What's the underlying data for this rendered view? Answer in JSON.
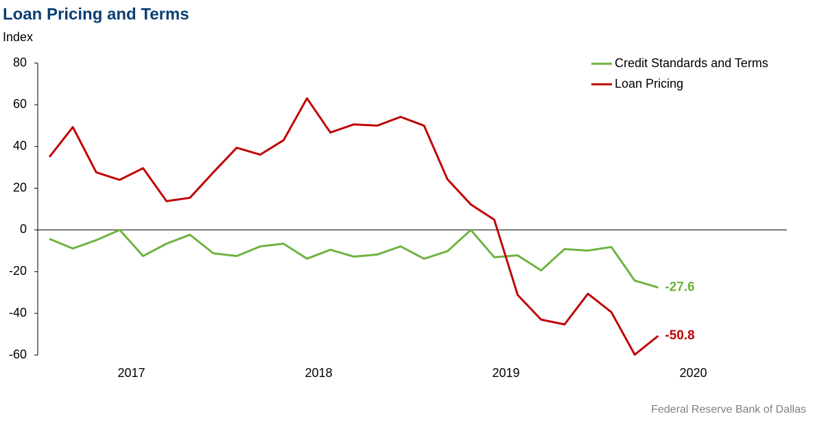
{
  "chart_data": {
    "type": "line",
    "title": "Loan Pricing and Terms",
    "y_label": "Index",
    "source": "Federal Reserve Bank of Dallas",
    "x": [
      2017.0625,
      2017.1875,
      2017.3125,
      2017.4375,
      2017.5625,
      2017.6875,
      2017.8125,
      2017.9375,
      2018.0625,
      2018.1875,
      2018.3125,
      2018.4375,
      2018.5625,
      2018.6875,
      2018.8125,
      2018.9375,
      2019.0625,
      2019.1875,
      2019.3125,
      2019.4375,
      2019.5625,
      2019.6875,
      2019.8125,
      2019.9375,
      2020.0625,
      2020.1875,
      2020.3125
    ],
    "xlim": [
      2017,
      2021
    ],
    "xticks": [
      {
        "value": 2017.5,
        "label": "2017"
      },
      {
        "value": 2018.5,
        "label": "2018"
      },
      {
        "value": 2019.5,
        "label": "2019"
      },
      {
        "value": 2020.5,
        "label": "2020"
      }
    ],
    "ylim": [
      -60,
      80
    ],
    "yticks": [
      -60,
      -40,
      -20,
      0,
      20,
      40,
      60,
      80
    ],
    "grid": false,
    "legend": "top-right",
    "label_last": true,
    "series": [
      {
        "name": "Credit Standards and Terms",
        "color": "#6db33f",
        "values": [
          -4.3,
          -8.9,
          -4.9,
          0,
          -12.5,
          -6.6,
          -2.3,
          -11.2,
          -12.5,
          -7.9,
          -6.6,
          -13.8,
          -9.5,
          -12.8,
          -11.8,
          -7.9,
          -13.8,
          -10.2,
          0,
          -13.1,
          -12.2,
          -19.4,
          -9.2,
          -9.9,
          -8.2,
          -24.3,
          -27.6
        ]
      },
      {
        "name": "Loan Pricing",
        "color": "#c00000",
        "values": [
          35,
          49.3,
          27.6,
          24,
          29.6,
          13.8,
          15.4,
          27.6,
          39.4,
          36.1,
          43,
          63.1,
          46.7,
          50.6,
          50,
          54.2,
          50,
          24.3,
          12.2,
          4.9,
          -31.2,
          -43,
          -45.3,
          -30.6,
          -39.4,
          -59.8,
          -50.8
        ]
      }
    ]
  }
}
